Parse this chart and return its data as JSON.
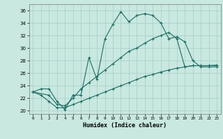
{
  "xlabel": "Humidex (Indice chaleur)",
  "ylabel": "",
  "bg_color": "#c8e8e0",
  "line_color": "#1a6e64",
  "grid_color": "#a8ccc8",
  "xlim": [
    -0.5,
    23.5
  ],
  "ylim": [
    19.5,
    37.0
  ],
  "xticks": [
    0,
    1,
    2,
    3,
    4,
    5,
    6,
    7,
    8,
    9,
    10,
    11,
    12,
    13,
    14,
    15,
    16,
    17,
    18,
    19,
    20,
    21,
    22,
    23
  ],
  "yticks": [
    20,
    22,
    24,
    26,
    28,
    30,
    32,
    34,
    36
  ],
  "line1_x": [
    0,
    1,
    2,
    3,
    4,
    5,
    6,
    7,
    8,
    9,
    10,
    11,
    12,
    13,
    14,
    15,
    16,
    17,
    18,
    19,
    20,
    21,
    22,
    23
  ],
  "line1_y": [
    23.0,
    23.5,
    23.5,
    21.5,
    20.2,
    22.5,
    22.5,
    28.5,
    25.0,
    31.5,
    33.8,
    35.8,
    34.2,
    35.2,
    35.5,
    35.2,
    34.0,
    31.5,
    31.8,
    31.0,
    28.0,
    27.0,
    27.0,
    27.0
  ],
  "line2_x": [
    0,
    2,
    3,
    4,
    5,
    6,
    7,
    8,
    9,
    10,
    11,
    12,
    13,
    14,
    15,
    16,
    17,
    18,
    19,
    20,
    21,
    22,
    23
  ],
  "line2_y": [
    23.0,
    22.5,
    21.0,
    20.8,
    22.0,
    23.5,
    24.5,
    25.5,
    26.5,
    27.5,
    28.5,
    29.5,
    30.0,
    30.8,
    31.5,
    32.0,
    32.5,
    31.5,
    27.0,
    27.2,
    27.2,
    27.2,
    27.2
  ],
  "line3_x": [
    0,
    1,
    2,
    3,
    4,
    5,
    6,
    7,
    8,
    9,
    10,
    11,
    12,
    13,
    14,
    15,
    16,
    17,
    18,
    19,
    20,
    21,
    22,
    23
  ],
  "line3_y": [
    23.0,
    22.5,
    21.5,
    20.5,
    20.5,
    21.0,
    21.5,
    22.0,
    22.5,
    23.0,
    23.5,
    24.0,
    24.5,
    25.0,
    25.5,
    25.8,
    26.2,
    26.5,
    26.8,
    27.0,
    27.2,
    27.2,
    27.2,
    27.3
  ]
}
